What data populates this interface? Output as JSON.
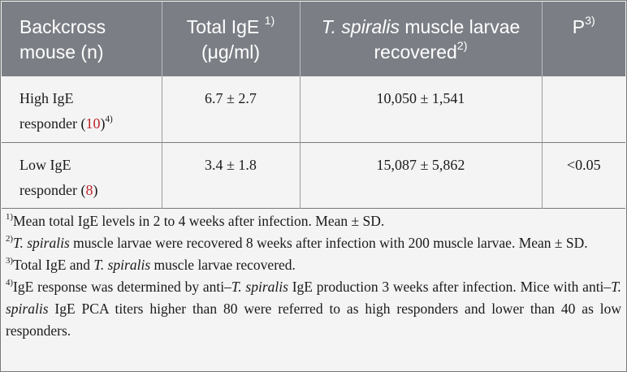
{
  "headers": {
    "col0": "Backcross mouse (n)",
    "col1_text": "Total IgE",
    "col1_sup": "1)",
    "col1_unit": "(μg/ml)",
    "col2_species": "T. spiralis",
    "col2_text": "muscle larvae recovered",
    "col2_sup": "2)",
    "col3_text": "P",
    "col3_sup": "3)"
  },
  "rows": [
    {
      "group_a": "High IgE",
      "group_b": "responder (",
      "n": "10",
      "close": ")",
      "sup": "4)",
      "total_ige": "6.7 ± 2.7",
      "larvae": "10,050 ± 1,541",
      "p": ""
    },
    {
      "group_a": "Low IgE",
      "group_b": "responder (",
      "n": "8",
      "close": ")",
      "sup": "",
      "total_ige": "3.4 ± 1.8",
      "larvae": "15,087 ± 5,862",
      "p": "<0.05"
    }
  ],
  "footnotes": {
    "n1_mark": "1)",
    "n1_text": "Mean total IgE levels in 2 to 4 weeks after infection. Mean ± SD.",
    "n2_mark": "2)",
    "n2_species": "T. spiralis",
    "n2_text": " muscle larvae were recovered 8 weeks after infection with 200 muscle larvae. Mean ± SD.",
    "n3_mark": "3)",
    "n3_text_a": "Total IgE and ",
    "n3_species": "T. spiralis",
    "n3_text_b": " muscle larvae recovered.",
    "n4_mark": "4)",
    "n4_text_a": "IgE response was determined by anti–",
    "n4_species_a": "T. spiralis",
    "n4_text_b": " IgE production 3 weeks after infection. Mice with anti–",
    "n4_species_b": "T. spiralis",
    "n4_text_c": " IgE PCA titers higher than 80 were referred to as high responders and lower than 40 as low responders."
  },
  "colors": {
    "header_bg": "#7b7f85",
    "page_bg": "#f4f4f4",
    "ref_red": "#c0232a"
  }
}
